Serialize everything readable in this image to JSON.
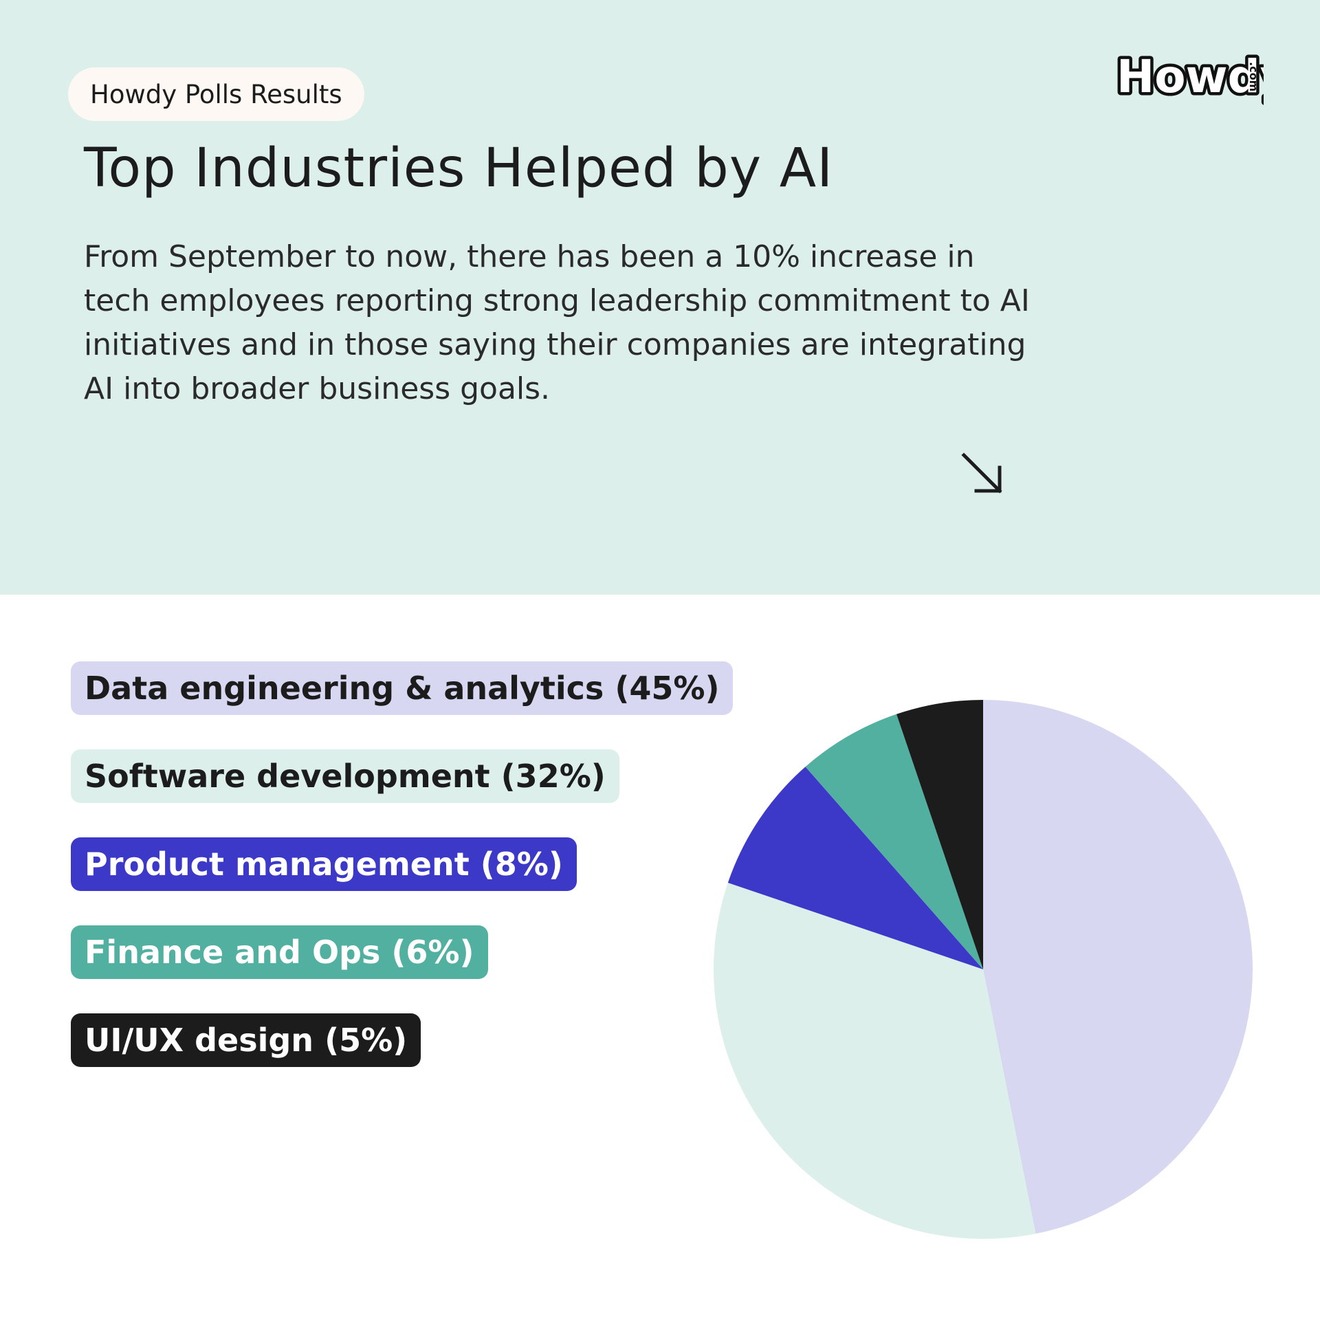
{
  "header": {
    "pill_label": "Howdy Polls Results",
    "title": "Top Industries Helped by AI",
    "description": "From September to now, there has been a 10% increase in tech employees reporting strong leadership commitment to AI initiatives and in those saying their companies are integrating AI into broader business goals.",
    "logo_text": "Howdy",
    "logo_suffix": ".com",
    "arrow_icon": "arrow-down-right-icon"
  },
  "colors": {
    "top_background": "#ddefeb",
    "pill_background": "#fdf8f3"
  },
  "chart_data": {
    "type": "pie",
    "title": "",
    "start_angle": "12 o'clock, clockwise",
    "slices": [
      {
        "label": "Data engineering & analytics (45%)",
        "value": 45,
        "color": "#d8d7f1",
        "text_color": "#1c1c1c"
      },
      {
        "label": "Software development (32%)",
        "value": 32,
        "color": "#ddefeb",
        "text_color": "#1c1c1c"
      },
      {
        "label": "Product management (8%)",
        "value": 8,
        "color": "#3c38c8",
        "text_color": "#ffffff"
      },
      {
        "label": "Finance and Ops (6%)",
        "value": 6,
        "color": "#52b0a0",
        "text_color": "#ffffff"
      },
      {
        "label": "UI/UX design (5%)",
        "value": 5,
        "color": "#1c1c1c",
        "text_color": "#ffffff"
      }
    ],
    "legend_placement": "left"
  }
}
